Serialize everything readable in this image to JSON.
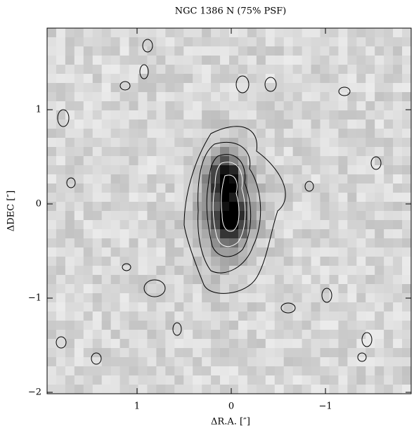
{
  "chart_data": {
    "type": "image",
    "title": "NGC 1386 N (75% PSF)",
    "xlabel": "ΔR.A. [″]",
    "ylabel": "ΔDEC [″]",
    "xlim": [
      1.955,
      -1.91
    ],
    "ylim": [
      -2.015,
      1.866
    ],
    "xticks": [
      1,
      0,
      {
        "value": -1,
        "label": "−1"
      }
    ],
    "yticks": [
      {
        "value": -2,
        "label": "−2"
      },
      {
        "value": -1,
        "label": "−1"
      },
      0,
      1
    ]
  }
}
